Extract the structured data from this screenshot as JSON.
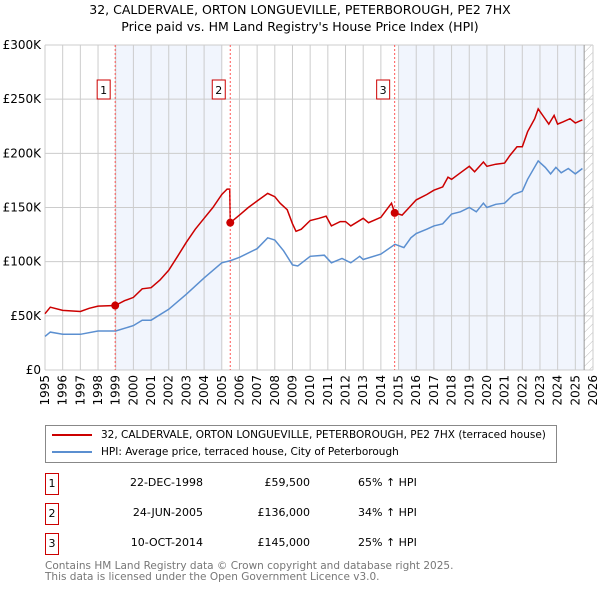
{
  "chart_data": {
    "type": "line",
    "title": "32, CALDERVALE, ORTON LONGUEVILLE, PETERBOROUGH, PE2 7HX",
    "subtitle": "Price paid vs. HM Land Registry's House Price Index (HPI)",
    "xlim": [
      1995,
      2026
    ],
    "ylim": [
      0,
      300000
    ],
    "y_ticks": [
      {
        "v": 0,
        "label": "£0"
      },
      {
        "v": 50000,
        "label": "£50K"
      },
      {
        "v": 100000,
        "label": "£100K"
      },
      {
        "v": 150000,
        "label": "£150K"
      },
      {
        "v": 200000,
        "label": "£200K"
      },
      {
        "v": 250000,
        "label": "£250K"
      },
      {
        "v": 300000,
        "label": "£300K"
      }
    ],
    "x_ticks": [
      "1995",
      "1996",
      "1997",
      "1998",
      "1999",
      "2000",
      "2001",
      "2002",
      "2003",
      "2004",
      "2005",
      "2006",
      "2007",
      "2008",
      "2009",
      "2010",
      "2011",
      "2012",
      "2013",
      "2014",
      "2015",
      "2016",
      "2017",
      "2018",
      "2019",
      "2020",
      "2021",
      "2022",
      "2023",
      "2024",
      "2025",
      "2026"
    ],
    "grid": true,
    "series": [
      {
        "name": "32, CALDERVALE, ORTON LONGUEVILLE, PETERBOROUGH, PE2 7HX (terraced house)",
        "color": "#cc0000",
        "x": [
          1995,
          1995.3,
          1996,
          1997,
          1997.5,
          1998,
          1998.97,
          1999.5,
          2000,
          2000.5,
          2001,
          2001.5,
          2002,
          2002.5,
          2003,
          2003.5,
          2004,
          2004.5,
          2005,
          2005.3,
          2005.45,
          2005.48,
          2006,
          2006.5,
          2007,
          2007.6,
          2008,
          2008.3,
          2008.7,
          2009,
          2009.2,
          2009.5,
          2010,
          2010.5,
          2010.9,
          2011.2,
          2011.7,
          2012,
          2012.3,
          2013,
          2013.3,
          2014,
          2014.6,
          2014.78,
          2015.2,
          2015.6,
          2016,
          2016.6,
          2017,
          2017.5,
          2017.8,
          2018,
          2018.5,
          2019,
          2019.3,
          2019.8,
          2020,
          2020.5,
          2021,
          2021.3,
          2021.7,
          2022,
          2022.3,
          2022.7,
          2022.9,
          2023.2,
          2023.5,
          2023.8,
          2024,
          2024.3,
          2024.7,
          2025,
          2025.4
        ],
        "y": [
          52000,
          58000,
          55000,
          54000,
          57000,
          59000,
          59500,
          64000,
          67000,
          75000,
          76000,
          83000,
          92000,
          105000,
          118000,
          130000,
          140000,
          150000,
          162000,
          167000,
          167000,
          136000,
          143000,
          150000,
          156000,
          163000,
          160000,
          154000,
          148000,
          135000,
          128000,
          130000,
          138000,
          140000,
          142000,
          133000,
          137000,
          137000,
          133000,
          140000,
          136000,
          141000,
          154000,
          145000,
          143000,
          150000,
          157000,
          162000,
          166000,
          169000,
          178000,
          176000,
          182000,
          188000,
          183000,
          192000,
          188000,
          190000,
          191000,
          198000,
          206000,
          206000,
          220000,
          232000,
          241000,
          234000,
          227000,
          235000,
          227000,
          229000,
          232000,
          228000,
          231000
        ]
      },
      {
        "name": "HPI: Average price, terraced house, City of Peterborough",
        "color": "#5b8fd0",
        "x": [
          1995,
          1995.3,
          1996,
          1997,
          1998,
          1999,
          2000,
          2000.5,
          2001,
          2002,
          2003,
          2004,
          2005,
          2005.5,
          2006,
          2007,
          2007.6,
          2008,
          2008.5,
          2009,
          2009.3,
          2010,
          2010.8,
          2011.2,
          2011.8,
          2012.3,
          2012.8,
          2013,
          2014,
          2014.8,
          2015.3,
          2015.7,
          2016,
          2016.6,
          2017,
          2017.5,
          2018,
          2018.5,
          2019,
          2019.4,
          2019.8,
          2020,
          2020.5,
          2021,
          2021.5,
          2022,
          2022.3,
          2022.9,
          2023.3,
          2023.6,
          2023.9,
          2024.2,
          2024.6,
          2025,
          2025.4
        ],
        "y": [
          31000,
          35000,
          33000,
          33000,
          36000,
          36000,
          41000,
          46000,
          46000,
          56000,
          70000,
          85000,
          99000,
          101000,
          104000,
          112000,
          122000,
          120000,
          110000,
          97000,
          96000,
          105000,
          106000,
          99000,
          103000,
          99000,
          105000,
          102000,
          107000,
          116000,
          113000,
          122000,
          126000,
          130000,
          133000,
          135000,
          144000,
          146000,
          150000,
          146000,
          154000,
          150000,
          153000,
          154000,
          162000,
          165000,
          176000,
          193000,
          187000,
          181000,
          187000,
          182000,
          186000,
          181000,
          186000
        ]
      }
    ],
    "sales": [
      {
        "label": "1",
        "x": 1998.97,
        "y": 59500,
        "date": "22-DEC-1998",
        "price": "£59,500",
        "hpi": "65% ↑ HPI"
      },
      {
        "label": "2",
        "x": 2005.48,
        "y": 136000,
        "date": "24-JUN-2005",
        "price": "£136,000",
        "hpi": "34% ↑ HPI"
      },
      {
        "label": "3",
        "x": 2014.78,
        "y": 145000,
        "date": "10-OCT-2014",
        "price": "£145,000",
        "hpi": "25% ↑ HPI"
      }
    ],
    "shaded_ranges": [
      [
        1998.97,
        2005.0
      ],
      [
        2015.0,
        2025.5
      ]
    ],
    "forecast_start": 2025.5,
    "legend_placement": "below"
  },
  "footer": {
    "line1": "Contains HM Land Registry data © Crown copyright and database right 2025.",
    "line2": "This data is licensed under the Open Government Licence v3.0."
  }
}
